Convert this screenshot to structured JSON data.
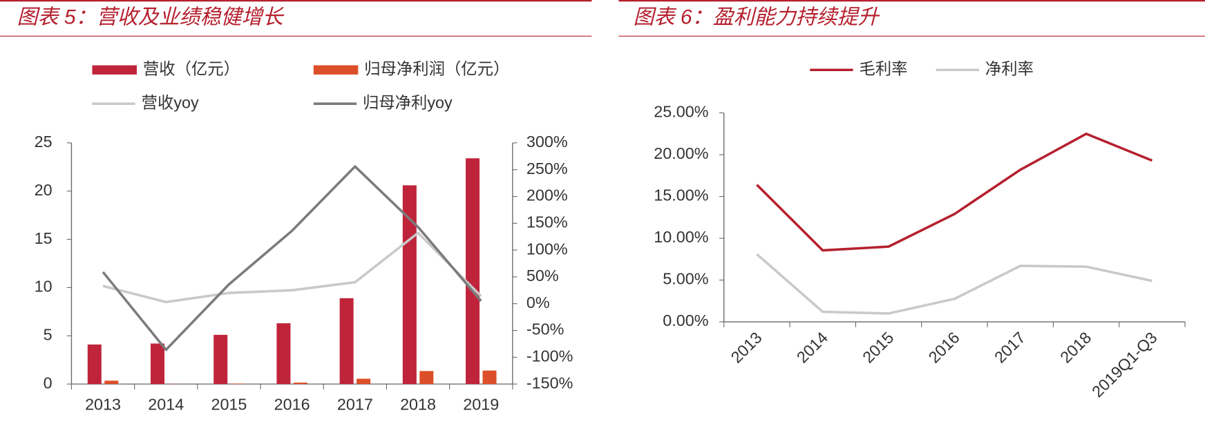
{
  "chart_data": [
    {
      "type": "bar",
      "title": "图表 5：营收及业绩稳健增长",
      "categories": [
        "2013",
        "2014",
        "2015",
        "2016",
        "2017",
        "2018",
        "2019"
      ],
      "series": [
        {
          "name": "营收（亿元）",
          "type": "bar",
          "color": "#c0243a",
          "values": [
            4.1,
            4.2,
            5.1,
            6.3,
            8.9,
            20.6,
            23.4
          ]
        },
        {
          "name": "归母净利润（亿元）",
          "type": "bar",
          "color": "#dd4f28",
          "values": [
            0.35,
            0.02,
            0.05,
            0.15,
            0.55,
            1.35,
            1.4
          ]
        },
        {
          "name": "营收yoy",
          "type": "line",
          "axis": "y2",
          "color": "#c9c9c9",
          "values": [
            33,
            3,
            20,
            25,
            40,
            132,
            14
          ]
        },
        {
          "name": "归母净利yoy",
          "type": "line",
          "axis": "y2",
          "color": "#7b7b7b",
          "values": [
            59,
            -86,
            36,
            136,
            256,
            143,
            5
          ]
        }
      ],
      "ylim": [
        0,
        25
      ],
      "yticks": [
        0,
        5,
        10,
        15,
        20,
        25
      ],
      "y2lim": [
        -150,
        300
      ],
      "y2ticks": [
        {
          "value": -150,
          "label": "-150%"
        },
        {
          "value": -100,
          "label": "-100%"
        },
        {
          "value": -50,
          "label": "-50%"
        },
        {
          "value": 0,
          "label": "0%"
        },
        {
          "value": 50,
          "label": "50%"
        },
        {
          "value": 100,
          "label": "100%"
        },
        {
          "value": 150,
          "label": "150%"
        },
        {
          "value": 200,
          "label": "200%"
        },
        {
          "value": 250,
          "label": "250%"
        },
        {
          "value": 300,
          "label": "300%"
        }
      ],
      "legend": "top"
    },
    {
      "type": "line",
      "title": "图表 6：盈利能力持续提升",
      "categories": [
        "2013",
        "2014",
        "2015",
        "2016",
        "2017",
        "2018",
        "2019Q1-Q3"
      ],
      "series": [
        {
          "name": "毛利率",
          "type": "line",
          "color": "#b5202e",
          "values": [
            16.4,
            8.55,
            9.0,
            12.9,
            18.2,
            22.5,
            19.3
          ]
        },
        {
          "name": "净利率",
          "type": "line",
          "color": "#c9c9c9",
          "values": [
            8.1,
            1.2,
            1.0,
            2.75,
            6.7,
            6.6,
            4.9
          ]
        }
      ],
      "ylim": [
        0,
        25
      ],
      "yticks": [
        {
          "value": 0,
          "label": "0.00%"
        },
        {
          "value": 5,
          "label": "5.00%"
        },
        {
          "value": 10,
          "label": "10.00%"
        },
        {
          "value": 15,
          "label": "15.00%"
        },
        {
          "value": 20,
          "label": "20.00%"
        },
        {
          "value": 25,
          "label": "25.00%"
        }
      ],
      "legend": "top"
    }
  ]
}
